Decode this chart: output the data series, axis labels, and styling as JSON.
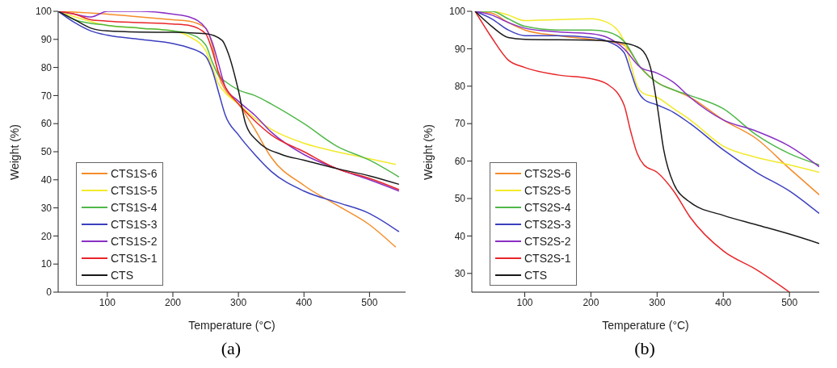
{
  "chart_data": [
    {
      "type": "line",
      "xlabel": "Temperature (°C)",
      "ylabel": "Weight (%)",
      "annotations": [
        "(a)"
      ],
      "xlim": [
        25,
        555
      ],
      "xticks": [
        100,
        200,
        300,
        400,
        500
      ],
      "ylim": [
        0,
        100
      ],
      "yticks": [
        0,
        10,
        20,
        30,
        40,
        50,
        60,
        70,
        80,
        90,
        100
      ],
      "grid": false,
      "legend": "bottom left",
      "marker": "none",
      "line_style": "solid",
      "series": [
        {
          "name": "CTS1S-6",
          "color": "#f58c2a",
          "x": [
            25,
            100,
            150,
            200,
            225,
            250,
            260,
            270,
            280,
            300,
            325,
            350,
            400,
            450,
            500,
            540
          ],
          "values": [
            100,
            99,
            98,
            97,
            96.5,
            94,
            88,
            77,
            72,
            67,
            58,
            48,
            38,
            31,
            24,
            16
          ]
        },
        {
          "name": "CTS1S-5",
          "color": "#f2ea2a",
          "x": [
            25,
            100,
            150,
            200,
            225,
            250,
            260,
            270,
            280,
            300,
            325,
            350,
            400,
            450,
            500,
            540
          ],
          "values": [
            100,
            95,
            94,
            93,
            91,
            86,
            80,
            74,
            71,
            67,
            62,
            58,
            53,
            50,
            47.5,
            45.5
          ]
        },
        {
          "name": "CTS1S-4",
          "color": "#4fb848",
          "x": [
            25,
            50,
            100,
            150,
            200,
            225,
            250,
            260,
            270,
            280,
            300,
            325,
            350,
            400,
            450,
            500,
            545
          ],
          "values": [
            100,
            97,
            95,
            94,
            93,
            92,
            88,
            82,
            77,
            75,
            72,
            70,
            67,
            60,
            52,
            47,
            41
          ]
        },
        {
          "name": "CTS1S-3",
          "color": "#3b3fbf",
          "x": [
            25,
            50,
            75,
            100,
            150,
            200,
            225,
            250,
            260,
            270,
            280,
            300,
            325,
            350,
            400,
            450,
            500,
            545
          ],
          "values": [
            100,
            96,
            93,
            91.5,
            90,
            88.5,
            87,
            84,
            79,
            71,
            63,
            56,
            49,
            43,
            36,
            32,
            28,
            21.5
          ]
        },
        {
          "name": "CTS1S-2",
          "color": "#8a2fc4",
          "x": [
            25,
            50,
            75,
            100,
            150,
            200,
            225,
            250,
            260,
            270,
            280,
            300,
            325,
            350,
            400,
            450,
            500,
            545
          ],
          "values": [
            100,
            99,
            98,
            100,
            100,
            99,
            98,
            94,
            89,
            81,
            73,
            68,
            63,
            57,
            49,
            44,
            40,
            36
          ]
        },
        {
          "name": "CTS1S-1",
          "color": "#e8262a",
          "x": [
            25,
            50,
            75,
            100,
            150,
            200,
            225,
            250,
            260,
            270,
            280,
            300,
            325,
            350,
            400,
            450,
            500,
            545
          ],
          "values": [
            100,
            99,
            97,
            96.5,
            96,
            95.5,
            95,
            92,
            86,
            78,
            73,
            67,
            61,
            56,
            50,
            44,
            40.5,
            36.5
          ]
        },
        {
          "name": "CTS",
          "color": "#1a1a1a",
          "x": [
            25,
            50,
            75,
            100,
            150,
            200,
            250,
            275,
            285,
            300,
            311,
            328,
            366,
            400,
            450,
            500,
            545
          ],
          "values": [
            100,
            97,
            94,
            93,
            92.6,
            92.5,
            92,
            89.7,
            84.7,
            71.8,
            60,
            54,
            49,
            47,
            44,
            41.4,
            38.4
          ]
        }
      ]
    },
    {
      "type": "line",
      "xlabel": "Temperature (°C)",
      "ylabel": "Weight (%)",
      "annotations": [
        "(b)"
      ],
      "xlim": [
        20,
        545
      ],
      "xticks": [
        100,
        200,
        300,
        400,
        500
      ],
      "ylim": [
        25,
        100
      ],
      "yticks": [
        30,
        40,
        50,
        60,
        70,
        80,
        90,
        100
      ],
      "grid": false,
      "legend": "bottom left",
      "marker": "none",
      "line_style": "solid",
      "series": [
        {
          "name": "CTS2S-6",
          "color": "#f58c2a",
          "x": [
            25,
            50,
            75,
            100,
            150,
            200,
            250,
            275,
            300,
            325,
            350,
            400,
            450,
            500,
            545
          ],
          "values": [
            100,
            99.5,
            97,
            95,
            93.5,
            92.5,
            91,
            85,
            81,
            79,
            77,
            71,
            66,
            58,
            51
          ]
        },
        {
          "name": "CTS2S-5",
          "color": "#f2ea2a",
          "x": [
            25,
            50,
            75,
            100,
            150,
            200,
            225,
            250,
            260,
            270,
            280,
            300,
            325,
            350,
            400,
            450,
            500,
            545
          ],
          "values": [
            100,
            100,
            99,
            97.5,
            97.8,
            98,
            97,
            92,
            86,
            80,
            78,
            77,
            74,
            71,
            64,
            61,
            59,
            57
          ]
        },
        {
          "name": "CTS2S-4",
          "color": "#4fb848",
          "x": [
            25,
            50,
            75,
            100,
            150,
            200,
            225,
            250,
            275,
            300,
            325,
            350,
            400,
            450,
            500,
            545
          ],
          "values": [
            100,
            100,
            98,
            96,
            95,
            95,
            94.5,
            92,
            85,
            81,
            79,
            77.5,
            74,
            67,
            62,
            59
          ]
        },
        {
          "name": "CTS2S-3",
          "color": "#3b3fbf",
          "x": [
            25,
            50,
            75,
            100,
            150,
            200,
            225,
            250,
            260,
            270,
            280,
            300,
            325,
            350,
            400,
            450,
            500,
            545
          ],
          "values": [
            100,
            98,
            95,
            93.5,
            93.5,
            93,
            92,
            89,
            84,
            79,
            76.5,
            75,
            73,
            70,
            63,
            57,
            52,
            46
          ]
        },
        {
          "name": "CTS2S-2",
          "color": "#8a2fc4",
          "x": [
            25,
            50,
            75,
            100,
            150,
            200,
            225,
            250,
            275,
            300,
            325,
            350,
            400,
            450,
            500,
            545
          ],
          "values": [
            100,
            99,
            97,
            95.5,
            94.5,
            94,
            93,
            90,
            85,
            83.5,
            81,
            77,
            71,
            68,
            64,
            58.5
          ]
        },
        {
          "name": "CTS2S-1",
          "color": "#e8262a",
          "x": [
            25,
            50,
            75,
            100,
            150,
            200,
            225,
            250,
            260,
            270,
            280,
            300,
            325,
            350,
            400,
            450,
            500
          ],
          "values": [
            100,
            93,
            87,
            85,
            83,
            82,
            80.5,
            75,
            68,
            62,
            59,
            57,
            52,
            45,
            36,
            31,
            25
          ]
        },
        {
          "name": "CTS",
          "color": "#1a1a1a",
          "x": [
            25,
            50,
            75,
            100,
            200,
            250,
            275,
            290,
            300,
            310,
            325,
            350,
            400,
            450,
            500,
            545
          ],
          "values": [
            100,
            96,
            93,
            92.5,
            92.3,
            91.5,
            90,
            85,
            75,
            63,
            54,
            49,
            45.5,
            43,
            40.5,
            38
          ]
        }
      ]
    }
  ]
}
